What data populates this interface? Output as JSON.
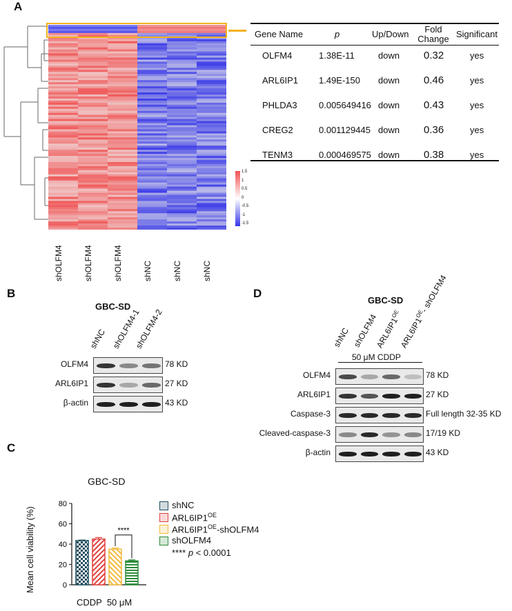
{
  "panels": {
    "a": "A",
    "b": "B",
    "c": "C",
    "d": "D"
  },
  "heatmap": {
    "columns": [
      "shOLFM4",
      "shOLFM4",
      "shOLFM4",
      "shNC",
      "shNC",
      "shNC"
    ],
    "scale_ticks": [
      "1.5",
      "1",
      "0.5",
      "0",
      "-0.5",
      "-1",
      "-1.5"
    ],
    "colors": {
      "high": "#f05050",
      "low": "#3636e8",
      "mid": "#ffffff",
      "highlight": "#f2b21d"
    }
  },
  "gene_table": {
    "headers": [
      "Gene Name",
      "p",
      "Up/Down",
      "Fold Change",
      "Significant"
    ],
    "rows": [
      {
        "gene": "OLFM4",
        "p": "1.38E-11",
        "dir": "down",
        "fc": "0.32",
        "sig": "yes"
      },
      {
        "gene": "ARL6IP1",
        "p": "1.49E-150",
        "dir": "down",
        "fc": "0.46",
        "sig": "yes"
      },
      {
        "gene": "PHLDA3",
        "p": "0.005649416",
        "dir": "down",
        "fc": "0.43",
        "sig": "yes"
      },
      {
        "gene": "CREG2",
        "p": "0.001129445",
        "dir": "down",
        "fc": "0.36",
        "sig": "yes"
      },
      {
        "gene": "TENM3",
        "p": "0.000469575",
        "dir": "down",
        "fc": "0.38",
        "sig": "yes"
      }
    ]
  },
  "blot_b": {
    "title": "GBC-SD",
    "lanes": [
      "shNC",
      "shOLFM4-1",
      "shOLFM4-2"
    ],
    "rows": [
      {
        "label": "OLFM4",
        "kd": "78 KD"
      },
      {
        "label": "ARL6IP1",
        "kd": "27 KD"
      },
      {
        "label": "β-actin",
        "kd": "43 KD"
      }
    ]
  },
  "blot_d": {
    "title": "GBC-SD",
    "lanes": [
      "shNC",
      "shOLFM4",
      "ARL6IP1",
      "ARL6IP1",
      "- shOLFM4"
    ],
    "oe": "OE",
    "treatment": "50 μM CDDP",
    "rows": [
      {
        "label": "OLFM4",
        "kd": "78 KD"
      },
      {
        "label": "ARL6IP1",
        "kd": "27 KD"
      },
      {
        "label": "Caspase-3",
        "kd": "Full length 32-35 KD"
      },
      {
        "label": "Cleaved-caspase-3",
        "kd": "17/19 KD"
      },
      {
        "label": "β-actin",
        "kd": "43 KD"
      }
    ]
  },
  "chart_data": {
    "type": "bar",
    "title": "GBC-SD",
    "ylabel": "Mean cell viability (%)",
    "xlabel": "CDDP  50 μM",
    "ylim": [
      0,
      80
    ],
    "yticks": [
      "0",
      "20",
      "40",
      "60",
      "80"
    ],
    "categories": [
      "shNC",
      "ARL6IP1OE",
      "ARL6IP1OE-shOLFM4",
      "shOLFM4"
    ],
    "values": [
      43.5,
      45,
      35,
      23.5
    ],
    "errors": [
      0.5,
      1.5,
      1.2,
      1.0
    ],
    "colors": [
      "#1f4d5e",
      "#e0403c",
      "#f2b93b",
      "#2e8b3a"
    ],
    "significance": "****",
    "legend": [
      {
        "name": "shNC",
        "sup": "",
        "tail": ""
      },
      {
        "name": "ARL6IP1",
        "sup": "OE",
        "tail": ""
      },
      {
        "name": "ARL6IP1",
        "sup": "OE",
        "tail": "-shOLFM4"
      },
      {
        "name": "shOLFM4",
        "sup": "",
        "tail": ""
      }
    ],
    "pvalue_prefix": "**** ",
    "pvalue_p": "p",
    "pvalue_suffix": " < 0.0001"
  }
}
